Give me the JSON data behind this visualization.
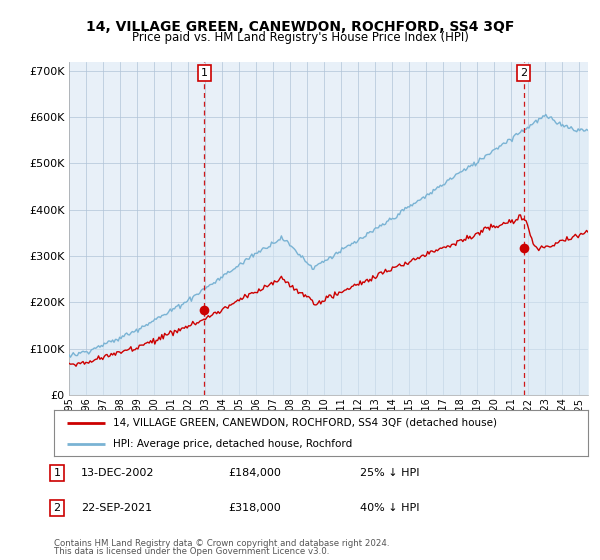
{
  "title": "14, VILLAGE GREEN, CANEWDON, ROCHFORD, SS4 3QF",
  "subtitle": "Price paid vs. HM Land Registry's House Price Index (HPI)",
  "legend_line1": "14, VILLAGE GREEN, CANEWDON, ROCHFORD, SS4 3QF (detached house)",
  "legend_line2": "HPI: Average price, detached house, Rochford",
  "annotation1_label": "1",
  "annotation1_date": "13-DEC-2002",
  "annotation1_price": "£184,000",
  "annotation1_hpi": "25% ↓ HPI",
  "annotation2_label": "2",
  "annotation2_date": "22-SEP-2021",
  "annotation2_price": "£318,000",
  "annotation2_hpi": "40% ↓ HPI",
  "footnote1": "Contains HM Land Registry data © Crown copyright and database right 2024.",
  "footnote2": "This data is licensed under the Open Government Licence v3.0.",
  "hpi_color": "#7ab3d4",
  "hpi_fill_color": "#daeaf5",
  "price_color": "#cc0000",
  "dashed_line_color": "#cc0000",
  "plot_bg_color": "#e8f0f8",
  "background_color": "#ffffff",
  "ylim": [
    0,
    720000
  ],
  "yticks": [
    0,
    100000,
    200000,
    300000,
    400000,
    500000,
    600000,
    700000
  ],
  "ytick_labels": [
    "£0",
    "£100K",
    "£200K",
    "£300K",
    "£400K",
    "£500K",
    "£600K",
    "£700K"
  ],
  "sale1_x": 2002.95,
  "sale1_y": 184000,
  "sale2_x": 2021.72,
  "sale2_y": 318000,
  "xlim_left": 1995.0,
  "xlim_right": 2025.5
}
